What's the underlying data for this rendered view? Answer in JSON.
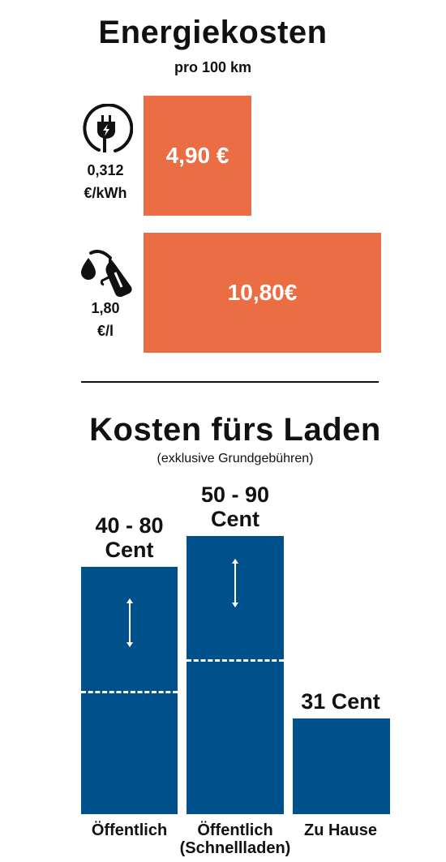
{
  "energy": {
    "title": "Energiekosten",
    "subtitle": "pro 100 km",
    "electric": {
      "icon": "electric-plug-icon",
      "rate_value": "0,312",
      "rate_unit": "€/kWh",
      "cost_label": "4,90 €"
    },
    "fuel": {
      "icon": "fuel-nozzle-icon",
      "rate_value": "1,80",
      "rate_unit": "€/l",
      "cost_label": "10,80€"
    }
  },
  "charging": {
    "title": "Kosten fürs Laden",
    "note": "(exklusive Grundgebühren)"
  },
  "colors": {
    "orange": "#EB6D44",
    "blue": "#00508C",
    "white": "#ffffff",
    "text": "#111111"
  },
  "chart_data": [
    {
      "type": "bar",
      "orientation": "horizontal",
      "title": "Energiekosten",
      "subtitle": "pro 100 km",
      "categories": [
        "0,312 €/kWh",
        "1,80 €/l"
      ],
      "values": [
        4.9,
        10.8
      ],
      "data_labels": [
        "4,90 €",
        "10,80€"
      ],
      "xlim": [
        0,
        10.8
      ]
    },
    {
      "type": "bar",
      "title": "Kosten fürs Laden",
      "subtitle": "(exklusive Grundgebühren)",
      "categories": [
        "Öffentlich",
        "Öffentlich\n(Schnellladen)",
        "Zu Hause"
      ],
      "ranges": [
        [
          40,
          80
        ],
        [
          50,
          90
        ],
        [
          31,
          31
        ]
      ],
      "values": [
        80,
        90,
        31
      ],
      "data_labels": [
        "40 - 80\nCent",
        "50 - 90\nCent",
        "31 Cent"
      ],
      "ylabel": "",
      "ylim": [
        0,
        90
      ],
      "grid": false
    }
  ]
}
